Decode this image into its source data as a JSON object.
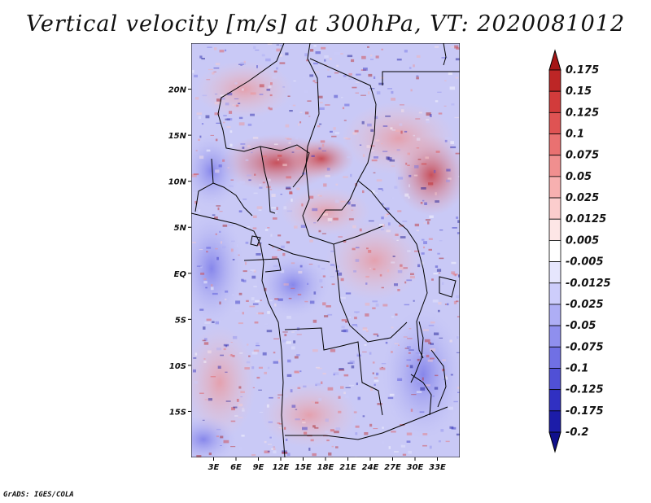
{
  "title": "Vertical velocity [m/s] at 300hPa, VT: 2020081012",
  "credit": "GrADS: IGES/COLA",
  "chart_data": {
    "type": "heatmap",
    "title": "Vertical velocity [m/s] at 300hPa, VT: 2020081012",
    "variable": "Vertical velocity",
    "units": "m/s",
    "level": "300hPa",
    "valid_time": "2020081012",
    "x_range": [
      0,
      36
    ],
    "y_range": [
      -20,
      25
    ],
    "x_ticks": [
      {
        "value": 3,
        "label": "3E"
      },
      {
        "value": 6,
        "label": "6E"
      },
      {
        "value": 9,
        "label": "9E"
      },
      {
        "value": 12,
        "label": "12E"
      },
      {
        "value": 15,
        "label": "15E"
      },
      {
        "value": 18,
        "label": "18E"
      },
      {
        "value": 21,
        "label": "21E"
      },
      {
        "value": 24,
        "label": "24E"
      },
      {
        "value": 27,
        "label": "27E"
      },
      {
        "value": 30,
        "label": "30E"
      },
      {
        "value": 33,
        "label": "33E"
      }
    ],
    "y_ticks": [
      {
        "value": 20,
        "label": "20N"
      },
      {
        "value": 15,
        "label": "15N"
      },
      {
        "value": 10,
        "label": "10N"
      },
      {
        "value": 5,
        "label": "5N"
      },
      {
        "value": 0,
        "label": "EQ"
      },
      {
        "value": -5,
        "label": "5S"
      },
      {
        "value": -10,
        "label": "10S"
      },
      {
        "value": -15,
        "label": "15S"
      }
    ],
    "colorbar": {
      "labels": [
        "0.175",
        "0.15",
        "0.125",
        "0.1",
        "0.075",
        "0.05",
        "0.025",
        "0.0125",
        "0.005",
        "-0.005",
        "-0.0125",
        "-0.025",
        "-0.05",
        "-0.075",
        "-0.1",
        "-0.125",
        "-0.175",
        "-0.2"
      ],
      "colors": [
        "#a51616",
        "#bd2626",
        "#d23b3b",
        "#df5353",
        "#e97171",
        "#f08f8f",
        "#f7b0b0",
        "#fbcdcd",
        "#fde6e6",
        "#ffffff",
        "#e6e6fd",
        "#cdcdfb",
        "#aeaef5",
        "#8f8fee",
        "#7070e4",
        "#5050d6",
        "#3030c2",
        "#1c1ca8",
        "#10108c"
      ]
    }
  }
}
